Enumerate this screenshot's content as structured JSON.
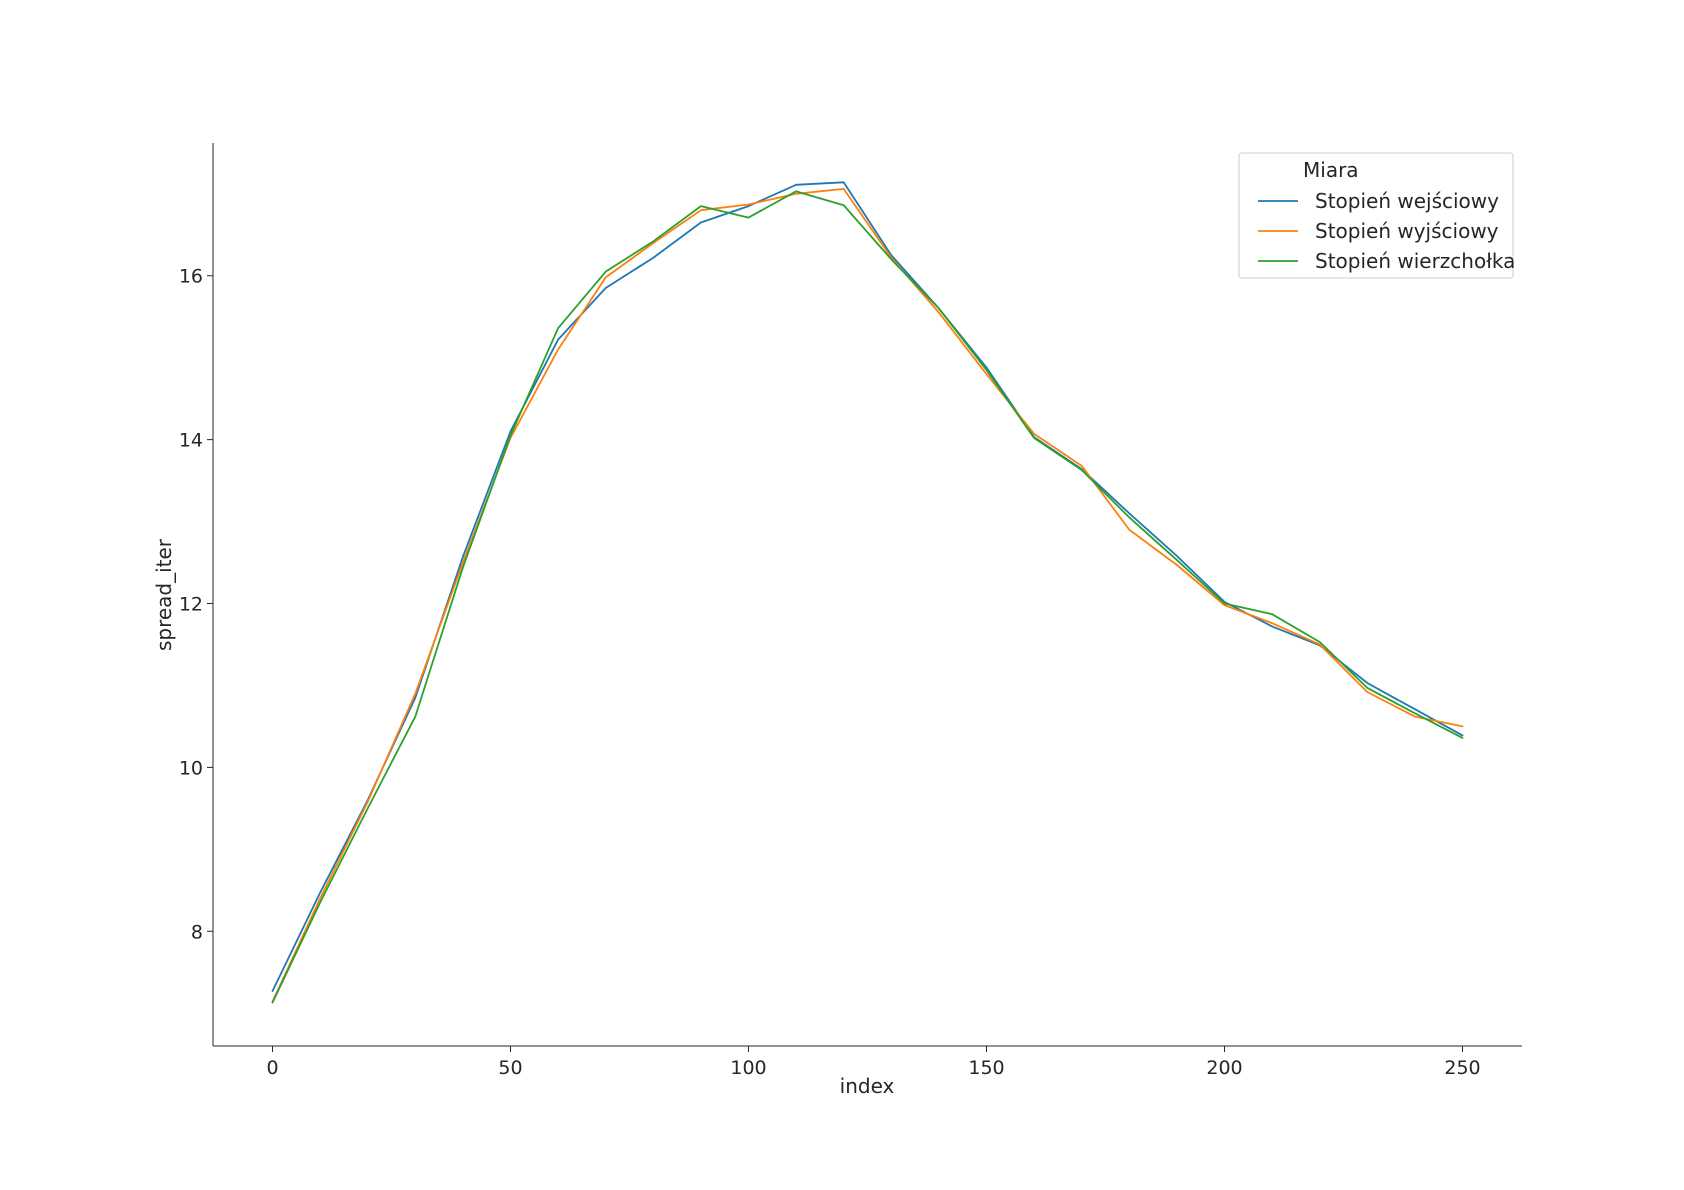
{
  "chart_data": {
    "type": "line",
    "title": "",
    "xlabel": "index",
    "ylabel": "spread_iter",
    "xlim": [
      -12.5,
      262.5
    ],
    "ylim": [
      6.6,
      17.62
    ],
    "xticks": [
      0,
      50,
      100,
      150,
      200,
      250
    ],
    "yticks": [
      8,
      10,
      12,
      14,
      16
    ],
    "grid": false,
    "legend": {
      "title": "Miara",
      "position": "top-right"
    },
    "x": [
      0,
      10,
      20,
      30,
      40,
      50,
      60,
      70,
      80,
      90,
      100,
      110,
      120,
      130,
      140,
      150,
      160,
      170,
      180,
      190,
      200,
      210,
      220,
      230,
      240,
      250
    ],
    "series": [
      {
        "name": "Stopień wejściowy",
        "color": "#1f77b4",
        "values": [
          7.27,
          8.47,
          9.6,
          10.85,
          12.57,
          14.1,
          15.22,
          15.85,
          16.22,
          16.65,
          16.85,
          17.11,
          17.14,
          16.25,
          15.6,
          14.88,
          14.03,
          13.64,
          13.1,
          12.58,
          12.02,
          11.72,
          11.49,
          11.03,
          10.71,
          10.39
        ]
      },
      {
        "name": "Stopień wyjściowy",
        "color": "#ff7f0e",
        "values": [
          7.14,
          8.4,
          9.58,
          10.9,
          12.5,
          14.02,
          15.1,
          15.98,
          16.4,
          16.8,
          16.87,
          17.0,
          17.06,
          16.22,
          15.55,
          14.8,
          14.07,
          13.68,
          12.9,
          12.47,
          11.98,
          11.76,
          11.5,
          10.92,
          10.62,
          10.5
        ]
      },
      {
        "name": "Stopień wierzchołka",
        "color": "#2ca02c",
        "values": [
          7.13,
          8.35,
          9.5,
          10.62,
          12.44,
          14.05,
          15.36,
          16.05,
          16.42,
          16.85,
          16.71,
          17.03,
          16.86,
          16.2,
          15.6,
          14.85,
          14.02,
          13.63,
          13.05,
          12.53,
          12.0,
          11.87,
          11.53,
          10.97,
          10.66,
          10.36
        ]
      }
    ]
  }
}
